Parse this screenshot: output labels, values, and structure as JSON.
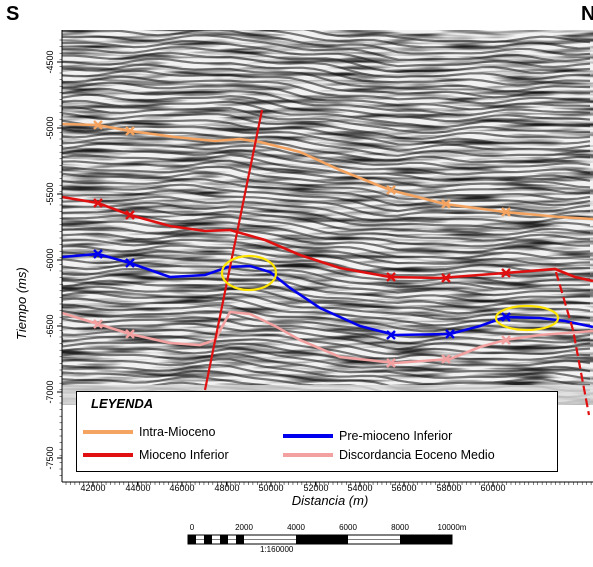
{
  "directions": {
    "south": "S",
    "north": "N"
  },
  "axes": {
    "ylabel": "Tiempo (ms)",
    "xlabel": "Distancia (m)",
    "y_ticks": [
      "-4500",
      "-5000",
      "-5500",
      "-6000",
      "-6500",
      "-7000",
      "-7500"
    ],
    "x_ticks": [
      "42000",
      "44000",
      "46000",
      "48000",
      "50000",
      "52000",
      "54000",
      "56000",
      "58000",
      "60000"
    ]
  },
  "legend": {
    "title": "LEYENDA",
    "items": [
      {
        "label": "Intra-Mioceno",
        "color": "#f4a460"
      },
      {
        "label": "Pre-mioceno  Inferior",
        "color": "#0000ee"
      },
      {
        "label": "Mioceno Inferior",
        "color": "#e01010"
      },
      {
        "label": "Discordancia Eoceno Medio",
        "color": "#f2a0a0"
      }
    ]
  },
  "scale_bar": {
    "labels": [
      "0",
      "2000",
      "4000",
      "6000",
      "8000",
      "10000m"
    ],
    "ratio": "1:160000"
  },
  "colors": {
    "intra_mioceno": "#f4a460",
    "mioceno_inferior": "#e01010",
    "pre_mioceno_inferior": "#0000ee",
    "discordancia": "#f2a0a0",
    "fault": "#e01010",
    "highlight": "#ffe400"
  }
}
